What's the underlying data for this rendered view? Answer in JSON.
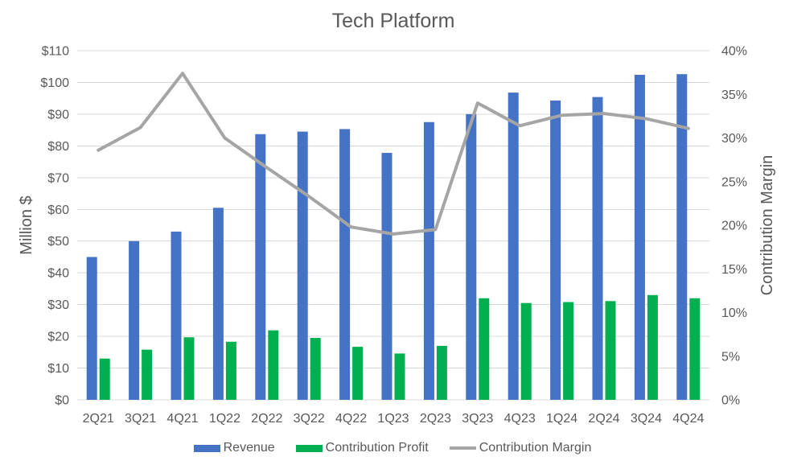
{
  "colors": {
    "revenue": "#4472C4",
    "contribution_profit": "#00B050",
    "contribution_margin": "#A5A5A5",
    "text": "#595959",
    "gridline": "#D9D9D9",
    "background": "#FFFFFF"
  },
  "chart_data": {
    "type": "combo-bar-line",
    "title": "Tech Platform",
    "categories": [
      "2Q21",
      "3Q21",
      "4Q21",
      "1Q22",
      "2Q22",
      "3Q22",
      "4Q22",
      "1Q23",
      "2Q23",
      "3Q23",
      "4Q23",
      "1Q24",
      "2Q24",
      "3Q24",
      "4Q24"
    ],
    "series": [
      {
        "name": "Revenue",
        "chart": "bar",
        "axis": "left",
        "color": "#4472C4",
        "values": [
          45,
          50,
          53,
          60.5,
          83.7,
          84.5,
          85.3,
          77.8,
          87.5,
          90,
          96.8,
          94.3,
          95.4,
          102.4,
          102.6
        ]
      },
      {
        "name": "Contribution Profit",
        "chart": "bar",
        "axis": "left",
        "color": "#00B050",
        "values": [
          13,
          15.8,
          19.7,
          18.3,
          21.9,
          19.5,
          16.7,
          14.6,
          17,
          32,
          30.5,
          30.8,
          31.1,
          33,
          32
        ]
      },
      {
        "name": "Contribution Margin",
        "chart": "line",
        "axis": "right",
        "color": "#A5A5A5",
        "values": [
          28.6,
          31.2,
          37.4,
          30,
          26.6,
          23.3,
          19.8,
          19,
          19.5,
          34,
          31.4,
          32.6,
          32.8,
          32.2,
          31.1
        ]
      }
    ],
    "left_axis": {
      "title": "Million $",
      "min": 0,
      "max": 110,
      "step": 10,
      "tick_prefix": "$",
      "tick_suffix": ""
    },
    "right_axis": {
      "title": "Contribution Margin",
      "min": 0,
      "max": 40,
      "step": 5,
      "tick_prefix": "",
      "tick_suffix": "%"
    },
    "grid": true,
    "legend_position": "bottom"
  }
}
